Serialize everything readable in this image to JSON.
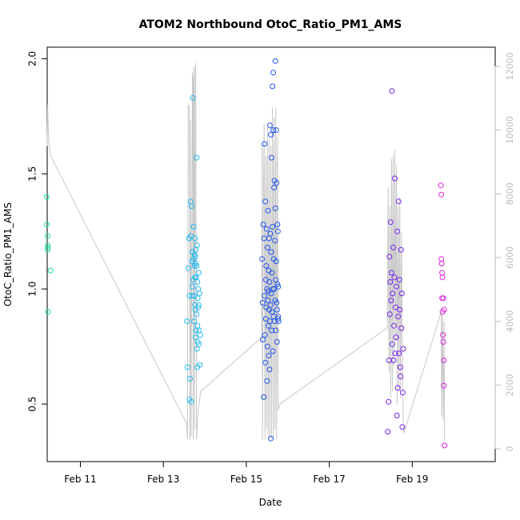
{
  "chart_data": {
    "type": "scatter",
    "title": "ATOM2 Northbound OtoC_Ratio_PM1_AMS",
    "xlabel": "Date",
    "ylabel": "OtoC_Ratio_PM1_AMS",
    "x_ticks": [
      "Feb 11",
      "Feb 13",
      "Feb 15",
      "Feb 17",
      "Feb 19"
    ],
    "x_tick_values": [
      11,
      13,
      15,
      17,
      19
    ],
    "xlim": [
      10.2,
      21.0
    ],
    "y_ticks": [
      "0.5",
      "1.0",
      "1.5",
      "2.0"
    ],
    "y_tick_values": [
      0.5,
      1.0,
      1.5,
      2.0
    ],
    "ylim": [
      0.25,
      2.05
    ],
    "y2_ticks": [
      "0",
      "2000",
      "4000",
      "6000",
      "8000",
      "10000",
      "12000"
    ],
    "y2_tick_values": [
      0,
      2000,
      4000,
      6000,
      8000,
      10000,
      12000
    ],
    "y2lim": [
      -400,
      12600
    ],
    "grid": false,
    "legend": "none",
    "colors": {
      "box": "#000000",
      "line": "#c8c8c8",
      "right_axis": "#bbbbbb",
      "group1": "#22ddaa",
      "group2": "#22bbee",
      "group3": "#2255ee",
      "group4": "#7722ee",
      "group5": "#dd22dd"
    },
    "series": [
      {
        "group": 1,
        "color": "#22ddaa",
        "x": [
          10.19,
          10.19,
          10.21,
          10.21,
          10.22,
          10.21,
          10.22,
          10.28
        ],
        "y": [
          1.4,
          1.28,
          1.23,
          1.19,
          1.18,
          1.17,
          0.9,
          1.08
        ]
      },
      {
        "group": 2,
        "color": "#22bbee",
        "x": [
          13.57,
          13.58,
          13.6,
          13.62,
          13.63,
          13.63,
          13.64,
          13.66,
          13.66,
          13.67,
          13.68,
          13.69,
          13.7,
          13.7,
          13.7,
          13.71,
          13.72,
          13.73,
          13.73,
          13.74,
          13.74,
          13.75,
          13.75,
          13.76,
          13.76,
          13.76,
          13.77,
          13.77,
          13.78,
          13.78,
          13.78,
          13.79,
          13.79,
          13.8,
          13.8,
          13.8,
          13.81,
          13.81,
          13.82,
          13.82,
          13.82,
          13.83,
          13.83,
          13.84,
          13.84,
          13.85,
          13.85,
          13.86,
          13.86,
          13.87,
          13.88,
          13.89
        ],
        "y": [
          0.86,
          0.66,
          1.09,
          1.22,
          0.52,
          0.97,
          0.61,
          1.38,
          1.23,
          0.51,
          1.36,
          1.12,
          1.16,
          1.01,
          0.97,
          1.83,
          1.04,
          1.13,
          1.27,
          0.86,
          0.97,
          1.15,
          1.1,
          1.22,
          1.05,
          0.93,
          1.14,
          0.91,
          1.11,
          0.79,
          1.17,
          1.05,
          0.82,
          1.57,
          1.1,
          0.89,
          0.74,
          1.19,
          0.66,
          1.03,
          0.84,
          0.77,
          0.96,
          0.92,
          1.0,
          0.93,
          1.07,
          0.76,
          0.82,
          0.98,
          0.67,
          0.8
        ]
      },
      {
        "group": 3,
        "color": "#2255ee",
        "x": [
          15.38,
          15.39,
          15.4,
          15.41,
          15.42,
          15.43,
          15.44,
          15.44,
          15.45,
          15.46,
          15.46,
          15.47,
          15.47,
          15.48,
          15.48,
          15.49,
          15.5,
          15.5,
          15.51,
          15.51,
          15.52,
          15.52,
          15.53,
          15.53,
          15.54,
          15.54,
          15.55,
          15.55,
          15.56,
          15.56,
          15.57,
          15.57,
          15.58,
          15.58,
          15.59,
          15.59,
          15.6,
          15.6,
          15.61,
          15.61,
          15.62,
          15.62,
          15.63,
          15.63,
          15.64,
          15.64,
          15.65,
          15.65,
          15.66,
          15.66,
          15.67,
          15.67,
          15.68,
          15.68,
          15.69,
          15.69,
          15.7,
          15.7,
          15.71,
          15.71,
          15.72,
          15.72,
          15.73,
          15.73,
          15.74,
          15.74,
          15.75,
          15.75,
          15.76,
          15.76,
          15.77,
          15.77,
          15.78
        ],
        "y": [
          1.13,
          0.94,
          0.78,
          1.28,
          0.53,
          1.22,
          0.97,
          1.63,
          0.8,
          1.38,
          0.68,
          1.04,
          0.87,
          1.1,
          0.92,
          1.26,
          0.6,
          1.0,
          0.75,
          1.18,
          0.95,
          1.34,
          0.84,
          0.99,
          0.71,
          1.08,
          0.91,
          1.22,
          0.65,
          1.03,
          0.86,
          1.71,
          0.93,
          1.24,
          0.35,
          1.67,
          0.98,
          1.16,
          0.82,
          1.57,
          1.07,
          0.9,
          1.88,
          1.27,
          1.0,
          0.73,
          1.94,
          1.69,
          1.13,
          0.88,
          1.44,
          1.0,
          1.47,
          0.86,
          1.21,
          0.95,
          1.99,
          1.35,
          1.04,
          0.82,
          1.69,
          1.12,
          0.94,
          1.46,
          0.91,
          0.77,
          1.28,
          1.02,
          0.87,
          1.25,
          0.88,
          1.01,
          0.86
        ]
      },
      {
        "group": 4,
        "color": "#7722ee",
        "x": [
          18.41,
          18.43,
          18.44,
          18.45,
          18.46,
          18.47,
          18.48,
          18.49,
          18.5,
          18.51,
          18.52,
          18.53,
          18.54,
          18.55,
          18.56,
          18.57,
          18.58,
          18.59,
          18.6,
          18.61,
          18.62,
          18.63,
          18.64,
          18.65,
          18.66,
          18.67,
          18.68,
          18.69,
          18.7,
          18.71,
          18.72,
          18.73,
          18.74,
          18.75,
          18.76,
          18.77,
          18.78
        ],
        "y": [
          0.38,
          0.51,
          0.69,
          1.14,
          0.89,
          1.03,
          1.29,
          0.95,
          1.07,
          1.86,
          0.76,
          0.98,
          1.18,
          0.69,
          0.84,
          1.05,
          1.48,
          0.72,
          0.92,
          0.79,
          1.01,
          0.45,
          1.25,
          0.57,
          0.88,
          1.38,
          0.72,
          1.04,
          0.91,
          0.66,
          0.62,
          1.17,
          0.83,
          0.98,
          0.4,
          0.55,
          0.74
        ]
      },
      {
        "group": 5,
        "color": "#dd22dd",
        "x": [
          19.69,
          19.7,
          19.7,
          19.71,
          19.72,
          19.72,
          19.73,
          19.73,
          19.74,
          19.75,
          19.75,
          19.76,
          19.76,
          19.77,
          19.78
        ],
        "y": [
          1.45,
          1.41,
          1.13,
          1.11,
          1.07,
          0.96,
          1.05,
          0.9,
          0.8,
          0.77,
          0.96,
          0.69,
          0.58,
          0.91,
          0.32
        ]
      }
    ],
    "line_series": {
      "axis": "right",
      "x": [
        10.19,
        10.2,
        10.21,
        10.24,
        10.28,
        13.56,
        13.58,
        13.6,
        13.6,
        13.63,
        13.64,
        13.65,
        13.67,
        13.7,
        13.71,
        13.72,
        13.73,
        13.74,
        13.75,
        13.77,
        13.78,
        13.8,
        13.82,
        13.84,
        13.86,
        13.88,
        13.9,
        15.37,
        15.38,
        15.39,
        15.41,
        15.43,
        15.45,
        15.47,
        15.49,
        15.51,
        15.53,
        15.55,
        15.57,
        15.59,
        15.61,
        15.63,
        15.65,
        15.67,
        15.69,
        15.71,
        15.73,
        15.75,
        15.77,
        15.8,
        18.4,
        18.42,
        18.44,
        18.46,
        18.48,
        18.5,
        18.52,
        18.54,
        18.56,
        18.58,
        18.6,
        18.62,
        18.64,
        18.66,
        18.68,
        18.7,
        18.72,
        18.74,
        18.76,
        18.78,
        18.8,
        19.7,
        19.71,
        19.73,
        19.75,
        19.77,
        19.78
      ],
      "y": [
        10000,
        9500,
        10800,
        9600,
        9200,
        800,
        300,
        10600,
        10800,
        10700,
        300,
        10300,
        400,
        11800,
        11500,
        300,
        11600,
        12000,
        600,
        11700,
        12100,
        300,
        800,
        1200,
        1400,
        1600,
        1800,
        3500,
        9600,
        300,
        7400,
        10200,
        300,
        9200,
        600,
        10100,
        400,
        9700,
        300,
        9500,
        300,
        10700,
        300,
        10400,
        600,
        10700,
        300,
        9800,
        1200,
        1400,
        3800,
        8200,
        2400,
        7600,
        1600,
        9100,
        1800,
        9200,
        2600,
        9400,
        3400,
        8900,
        1400,
        7600,
        1900,
        7900,
        1600,
        6800,
        3600,
        900,
        500,
        4300,
        1000,
        4200,
        900,
        4000,
        300
      ]
    }
  }
}
